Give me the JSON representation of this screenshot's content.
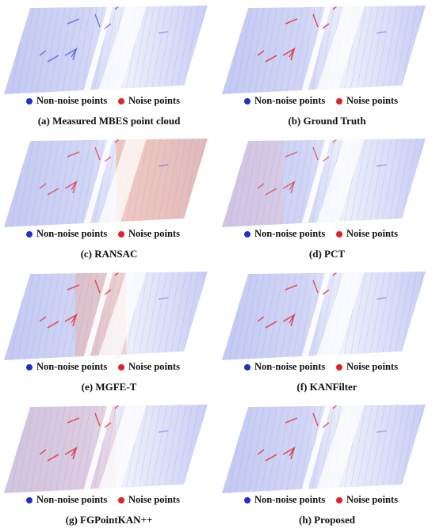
{
  "colors": {
    "non_noise": "#1f2fc8",
    "noise": "#e0222a",
    "cloud_base": "#c7cdf3"
  },
  "legend": {
    "non_noise_label": "Non-noise points",
    "noise_label": "Noise points"
  },
  "panels": [
    {
      "caption": "(a) Measured MBES point cloud"
    },
    {
      "caption": "(b) Ground Truth"
    },
    {
      "caption": "(c) RANSAC"
    },
    {
      "caption": "(d) PCT"
    },
    {
      "caption": "(e) MGFE-T"
    },
    {
      "caption": "(f) KANFilter"
    },
    {
      "caption": "(g) FGPointKAN++"
    },
    {
      "caption": "(h) Proposed"
    }
  ]
}
